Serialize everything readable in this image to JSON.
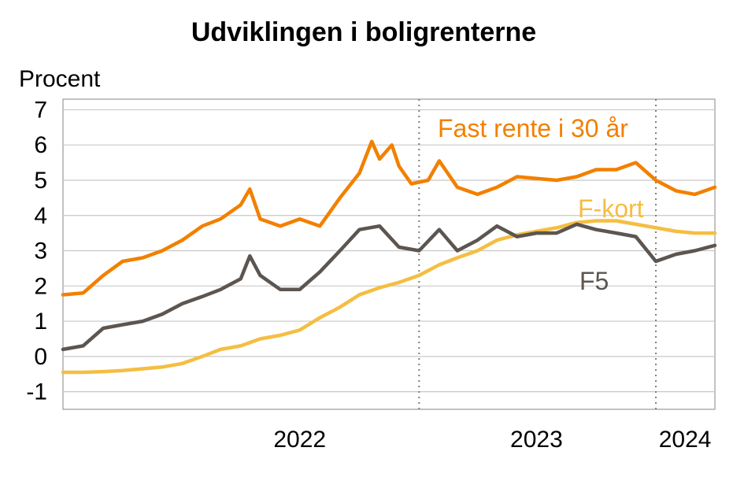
{
  "chart_data": {
    "type": "line",
    "title": "Udviklingen i boligrenterne",
    "ylabel": "Procent",
    "xlabel": "",
    "ylim": [
      -1.5,
      7.3
    ],
    "yticks": [
      "7",
      "6",
      "5",
      "4",
      "3",
      "2",
      "1",
      "0",
      "-1"
    ],
    "xlim": [
      "2021-07-01",
      "2024-04-01"
    ],
    "xticks": [
      {
        "label": "2022",
        "date": "2022-07-01"
      },
      {
        "label": "2023",
        "date": "2023-07-01"
      },
      {
        "label": "2024",
        "date": "2024-02-15"
      }
    ],
    "year_dividers": [
      "2023-01-01",
      "2024-01-01"
    ],
    "grid": true,
    "colors": {
      "fast": "#F28000",
      "fkort": "#F5BE41",
      "f5": "#5C5550",
      "grid": "#C8C8C8",
      "divider": "#7F7F7F"
    },
    "series": [
      {
        "name": "Fast rente i 30 år",
        "color": "#F28000",
        "points": [
          [
            "2021-07-01",
            1.75
          ],
          [
            "2021-08-01",
            1.8
          ],
          [
            "2021-09-01",
            2.3
          ],
          [
            "2021-10-01",
            2.7
          ],
          [
            "2021-11-01",
            2.8
          ],
          [
            "2021-12-01",
            3.0
          ],
          [
            "2022-01-01",
            3.3
          ],
          [
            "2022-02-01",
            3.7
          ],
          [
            "2022-03-01",
            3.9
          ],
          [
            "2022-04-01",
            4.3
          ],
          [
            "2022-04-15",
            4.75
          ],
          [
            "2022-05-01",
            3.9
          ],
          [
            "2022-06-01",
            3.7
          ],
          [
            "2022-07-01",
            3.9
          ],
          [
            "2022-08-01",
            3.7
          ],
          [
            "2022-09-01",
            4.5
          ],
          [
            "2022-10-01",
            5.2
          ],
          [
            "2022-10-20",
            6.1
          ],
          [
            "2022-11-01",
            5.6
          ],
          [
            "2022-11-20",
            6.0
          ],
          [
            "2022-12-01",
            5.4
          ],
          [
            "2022-12-20",
            4.9
          ],
          [
            "2023-01-15",
            5.0
          ],
          [
            "2023-02-01",
            5.55
          ],
          [
            "2023-03-01",
            4.8
          ],
          [
            "2023-04-01",
            4.6
          ],
          [
            "2023-05-01",
            4.8
          ],
          [
            "2023-06-01",
            5.1
          ],
          [
            "2023-07-01",
            5.05
          ],
          [
            "2023-08-01",
            5.0
          ],
          [
            "2023-09-01",
            5.1
          ],
          [
            "2023-10-01",
            5.3
          ],
          [
            "2023-11-01",
            5.3
          ],
          [
            "2023-12-01",
            5.5
          ],
          [
            "2024-01-01",
            5.0
          ],
          [
            "2024-02-01",
            4.7
          ],
          [
            "2024-03-01",
            4.6
          ],
          [
            "2024-04-01",
            4.8
          ]
        ]
      },
      {
        "name": "F-kort",
        "color": "#F5BE41",
        "points": [
          [
            "2021-07-01",
            -0.45
          ],
          [
            "2021-08-01",
            -0.45
          ],
          [
            "2021-09-01",
            -0.43
          ],
          [
            "2021-10-01",
            -0.4
          ],
          [
            "2021-11-01",
            -0.35
          ],
          [
            "2021-12-01",
            -0.3
          ],
          [
            "2022-01-01",
            -0.2
          ],
          [
            "2022-02-01",
            0.0
          ],
          [
            "2022-03-01",
            0.2
          ],
          [
            "2022-04-01",
            0.3
          ],
          [
            "2022-05-01",
            0.5
          ],
          [
            "2022-06-01",
            0.6
          ],
          [
            "2022-07-01",
            0.75
          ],
          [
            "2022-08-01",
            1.1
          ],
          [
            "2022-09-01",
            1.4
          ],
          [
            "2022-10-01",
            1.75
          ],
          [
            "2022-11-01",
            1.95
          ],
          [
            "2022-12-01",
            2.1
          ],
          [
            "2023-01-01",
            2.3
          ],
          [
            "2023-02-01",
            2.6
          ],
          [
            "2023-03-01",
            2.8
          ],
          [
            "2023-04-01",
            3.0
          ],
          [
            "2023-05-01",
            3.3
          ],
          [
            "2023-06-01",
            3.45
          ],
          [
            "2023-07-01",
            3.55
          ],
          [
            "2023-08-01",
            3.65
          ],
          [
            "2023-09-01",
            3.8
          ],
          [
            "2023-10-01",
            3.85
          ],
          [
            "2023-11-01",
            3.85
          ],
          [
            "2023-12-01",
            3.75
          ],
          [
            "2024-01-01",
            3.65
          ],
          [
            "2024-02-01",
            3.55
          ],
          [
            "2024-03-01",
            3.5
          ],
          [
            "2024-04-01",
            3.5
          ]
        ]
      },
      {
        "name": "F5",
        "color": "#5C5550",
        "points": [
          [
            "2021-07-01",
            0.2
          ],
          [
            "2021-08-01",
            0.3
          ],
          [
            "2021-09-01",
            0.8
          ],
          [
            "2021-10-01",
            0.9
          ],
          [
            "2021-11-01",
            1.0
          ],
          [
            "2021-12-01",
            1.2
          ],
          [
            "2022-01-01",
            1.5
          ],
          [
            "2022-02-01",
            1.7
          ],
          [
            "2022-03-01",
            1.9
          ],
          [
            "2022-04-01",
            2.2
          ],
          [
            "2022-04-15",
            2.85
          ],
          [
            "2022-05-01",
            2.3
          ],
          [
            "2022-06-01",
            1.9
          ],
          [
            "2022-07-01",
            1.9
          ],
          [
            "2022-08-01",
            2.4
          ],
          [
            "2022-09-01",
            3.0
          ],
          [
            "2022-10-01",
            3.6
          ],
          [
            "2022-11-01",
            3.7
          ],
          [
            "2022-12-01",
            3.1
          ],
          [
            "2023-01-01",
            3.0
          ],
          [
            "2023-02-01",
            3.6
          ],
          [
            "2023-03-01",
            3.0
          ],
          [
            "2023-04-01",
            3.3
          ],
          [
            "2023-05-01",
            3.7
          ],
          [
            "2023-06-01",
            3.4
          ],
          [
            "2023-07-01",
            3.5
          ],
          [
            "2023-08-01",
            3.5
          ],
          [
            "2023-09-01",
            3.75
          ],
          [
            "2023-10-01",
            3.6
          ],
          [
            "2023-11-01",
            3.5
          ],
          [
            "2023-12-01",
            3.4
          ],
          [
            "2024-01-01",
            2.7
          ],
          [
            "2024-02-01",
            2.9
          ],
          [
            "2024-03-01",
            3.0
          ],
          [
            "2024-04-01",
            3.15
          ]
        ]
      }
    ]
  }
}
